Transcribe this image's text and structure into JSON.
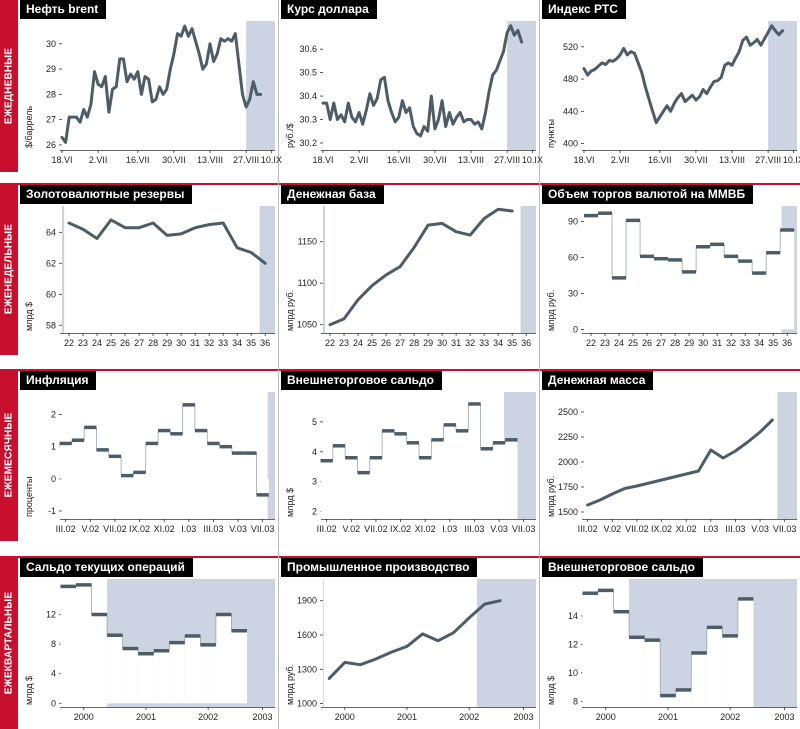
{
  "colors": {
    "accent": "#c8102e",
    "plot_bg": "#ccd3e2",
    "line": "#4d5d68",
    "title_bg": "#000000"
  },
  "rows": [
    {
      "label": "ЕЖЕДНЕВНЫЕ"
    },
    {
      "label": "ЕЖЕНЕДЕЛЬНЫЕ"
    },
    {
      "label": "ЕЖЕМЕСЯЧНЫЕ"
    },
    {
      "label": "ЕЖЕКВАРТАЛЬНЫЕ"
    }
  ],
  "chart_data": [
    {
      "id": "oil",
      "type": "line",
      "title": "Нефть brent",
      "ylabel": "$/баррель",
      "ylim": [
        25.8,
        30.9
      ],
      "yticks": [
        26,
        27,
        28,
        29,
        30
      ],
      "xlim": [
        0,
        59
      ],
      "xticks": [
        0,
        10,
        21,
        31,
        41,
        51,
        58
      ],
      "xticklabels": [
        "18.VI",
        "2.VII",
        "16.VII",
        "30.VII",
        "13.VIII",
        "27.VIII",
        "10.IX"
      ],
      "x": [
        0,
        1,
        2,
        3,
        4,
        5,
        6,
        7,
        8,
        9,
        10,
        11,
        12,
        13,
        14,
        15,
        16,
        17,
        18,
        19,
        20,
        21,
        22,
        23,
        24,
        25,
        26,
        27,
        28,
        29,
        30,
        31,
        32,
        33,
        34,
        35,
        36,
        37,
        38,
        39,
        40,
        41,
        42,
        43,
        44,
        45,
        46,
        47,
        48,
        49,
        50,
        51,
        52,
        53,
        54,
        55
      ],
      "values": [
        26.3,
        26.1,
        27.1,
        27.1,
        27.1,
        26.9,
        27.4,
        27.1,
        27.6,
        28.9,
        28.4,
        28.3,
        28.7,
        27.3,
        28.2,
        28.3,
        29.4,
        29.4,
        28.5,
        28.8,
        28.6,
        28.9,
        28.0,
        28.7,
        28.6,
        27.7,
        27.8,
        28.3,
        28.0,
        28.2,
        29.0,
        29.6,
        30.4,
        30.3,
        30.7,
        30.3,
        30.6,
        30.1,
        29.6,
        29.0,
        29.2,
        30.0,
        29.3,
        29.6,
        30.2,
        30.1,
        30.2,
        30.1,
        30.4,
        29.2,
        28.0,
        27.5,
        27.8,
        28.5,
        28.0,
        28.0
      ],
      "shade_from": 51
    },
    {
      "id": "usd",
      "type": "line",
      "title": "Курс доллара",
      "ylabel": "руб./$",
      "ylim": [
        30.17,
        30.72
      ],
      "yticks": [
        30.2,
        30.3,
        30.4,
        30.5,
        30.6
      ],
      "xlim": [
        0,
        59
      ],
      "xticks": [
        0,
        10,
        21,
        31,
        41,
        51,
        58
      ],
      "xticklabels": [
        "18.VI",
        "2.VII",
        "16.VII",
        "30.VII",
        "13.VIII",
        "27.VIII",
        "10.IX"
      ],
      "x": [
        0,
        1,
        2,
        3,
        4,
        5,
        6,
        7,
        8,
        9,
        10,
        11,
        12,
        13,
        14,
        15,
        16,
        17,
        18,
        19,
        20,
        21,
        22,
        23,
        24,
        25,
        26,
        27,
        28,
        29,
        30,
        31,
        32,
        33,
        34,
        35,
        36,
        37,
        38,
        39,
        40,
        41,
        42,
        43,
        44,
        45,
        46,
        47,
        48,
        49,
        50,
        51,
        52,
        53,
        54,
        55
      ],
      "values": [
        30.37,
        30.37,
        30.3,
        30.37,
        30.3,
        30.32,
        30.29,
        30.37,
        30.31,
        30.29,
        30.33,
        30.28,
        30.34,
        30.41,
        30.36,
        30.39,
        30.47,
        30.48,
        30.38,
        30.33,
        30.29,
        30.31,
        30.38,
        30.33,
        30.35,
        30.27,
        30.24,
        30.23,
        30.27,
        30.25,
        30.4,
        30.26,
        30.3,
        30.38,
        30.27,
        30.33,
        30.28,
        30.31,
        30.33,
        30.29,
        30.3,
        30.3,
        30.28,
        30.29,
        30.26,
        30.33,
        30.42,
        30.49,
        30.51,
        30.55,
        30.59,
        30.67,
        30.7,
        30.66,
        30.68,
        30.63
      ],
      "shade_from": 51
    },
    {
      "id": "rts",
      "type": "line",
      "title": "Индекс РТС",
      "ylabel": "пункты",
      "ylim": [
        392,
        552
      ],
      "yticks": [
        400,
        440,
        480,
        520
      ],
      "xlim": [
        0,
        59
      ],
      "xticks": [
        0,
        10,
        21,
        31,
        41,
        51,
        58
      ],
      "xticklabels": [
        "18.VI",
        "2.VII",
        "16.VII",
        "30.VII",
        "13.VIII",
        "27.VIII",
        "10.IX"
      ],
      "x": [
        0,
        1,
        2,
        3,
        4,
        5,
        6,
        7,
        8,
        9,
        10,
        11,
        12,
        13,
        14,
        15,
        16,
        17,
        18,
        19,
        20,
        21,
        22,
        23,
        24,
        25,
        26,
        27,
        28,
        29,
        30,
        31,
        32,
        33,
        34,
        35,
        36,
        37,
        38,
        39,
        40,
        41,
        42,
        43,
        44,
        45,
        46,
        47,
        48,
        49,
        50,
        51,
        52,
        53,
        54,
        55
      ],
      "values": [
        493,
        485,
        490,
        492,
        496,
        500,
        498,
        503,
        502,
        505,
        510,
        518,
        510,
        514,
        512,
        500,
        488,
        470,
        455,
        440,
        426,
        433,
        440,
        447,
        440,
        450,
        457,
        462,
        452,
        456,
        460,
        454,
        458,
        467,
        462,
        470,
        477,
        478,
        482,
        497,
        500,
        497,
        506,
        514,
        528,
        532,
        522,
        525,
        529,
        522,
        530,
        538,
        546,
        540,
        535,
        540
      ],
      "shade_from": 51
    },
    {
      "id": "reserves",
      "type": "line",
      "title": "Золотовалютные резервы",
      "ylabel": "млрд $",
      "ylim": [
        57.5,
        65.7
      ],
      "yticks": [
        58,
        60,
        62,
        64
      ],
      "xlim": [
        21.5,
        36.7
      ],
      "xticks": [
        22,
        23,
        24,
        25,
        26,
        27,
        28,
        29,
        30,
        31,
        32,
        33,
        34,
        35,
        36
      ],
      "xticklabels": [
        "22",
        "23",
        "24",
        "25",
        "26",
        "27",
        "28",
        "29",
        "30",
        "31",
        "32",
        "33",
        "34",
        "35",
        "36"
      ],
      "x": [
        22,
        23,
        24,
        25,
        26,
        27,
        28,
        29,
        30,
        31,
        32,
        33,
        34,
        35,
        36
      ],
      "values": [
        64.6,
        64.2,
        63.6,
        64.8,
        64.3,
        64.3,
        64.6,
        63.8,
        63.9,
        64.3,
        64.5,
        64.6,
        63.0,
        62.7,
        62.0
      ],
      "shade_from": 35.6
    },
    {
      "id": "money_base",
      "type": "line",
      "title": "Денежная база",
      "ylabel": "млрд руб.",
      "ylim": [
        1040,
        1193
      ],
      "yticks": [
        1050,
        1100,
        1150
      ],
      "xlim": [
        21.5,
        36.7
      ],
      "xticks": [
        22,
        23,
        24,
        25,
        26,
        27,
        28,
        29,
        30,
        31,
        32,
        33,
        34,
        35,
        36
      ],
      "xticklabels": [
        "22",
        "23",
        "24",
        "25",
        "26",
        "27",
        "28",
        "29",
        "30",
        "31",
        "32",
        "33",
        "34",
        "35",
        "36"
      ],
      "x": [
        22,
        23,
        24,
        25,
        26,
        27,
        28,
        29,
        30,
        31,
        32,
        33,
        34,
        35
      ],
      "values": [
        1050,
        1057,
        1080,
        1097,
        1110,
        1120,
        1143,
        1170,
        1172,
        1162,
        1158,
        1178,
        1189,
        1187
      ],
      "shade_from": 35.6
    },
    {
      "id": "micex",
      "type": "step",
      "title": "Объем торгов валютой на ММВБ",
      "ylabel": "млрд руб.",
      "ylim": [
        -3,
        103
      ],
      "yticks": [
        0,
        30,
        60,
        90
      ],
      "xlim": [
        21.5,
        36.7
      ],
      "xticks": [
        22,
        23,
        24,
        25,
        26,
        27,
        28,
        29,
        30,
        31,
        32,
        33,
        34,
        35,
        36
      ],
      "xticklabels": [
        "22",
        "23",
        "24",
        "25",
        "26",
        "27",
        "28",
        "29",
        "30",
        "31",
        "32",
        "33",
        "34",
        "35",
        "36"
      ],
      "x": [
        22,
        23,
        24,
        25,
        26,
        27,
        28,
        29,
        30,
        31,
        32,
        33,
        34,
        35,
        36
      ],
      "values": [
        95,
        97,
        43,
        91,
        61,
        59,
        58,
        48,
        69,
        71,
        61,
        57,
        47,
        64,
        83
      ],
      "shade_from": 35.6
    },
    {
      "id": "inflation",
      "type": "step",
      "title": "Инфляция",
      "ylabel": "проценты",
      "ylim": [
        -1.25,
        2.7
      ],
      "yticks": [
        -1,
        0,
        1,
        2
      ],
      "xlim": [
        -0.3,
        17
      ],
      "xticks": [
        0,
        2,
        4,
        6,
        8,
        10,
        12,
        14,
        16
      ],
      "xticklabels": [
        "III.02",
        "V.02",
        "VII.02",
        "IX.02",
        "XI.02",
        "I.03",
        "III.03",
        "V.03",
        "VII.03"
      ],
      "x": [
        0,
        1,
        2,
        3,
        4,
        5,
        6,
        7,
        8,
        9,
        10,
        11,
        12,
        13,
        14,
        15,
        16
      ],
      "values": [
        1.1,
        1.2,
        1.6,
        0.9,
        0.7,
        0.1,
        0.2,
        1.1,
        1.5,
        1.4,
        2.3,
        1.5,
        1.1,
        1.0,
        0.8,
        0.8,
        -0.5
      ],
      "shade_from": 16.4
    },
    {
      "id": "trade_m",
      "type": "step",
      "title": "Внешнеторговое сальдо",
      "ylabel": "млрд $",
      "ylim": [
        1.75,
        6.0
      ],
      "yticks": [
        2,
        3,
        4,
        5
      ],
      "xlim": [
        -0.3,
        17
      ],
      "xticks": [
        0,
        2,
        4,
        6,
        8,
        10,
        12,
        14,
        16
      ],
      "xticklabels": [
        "III.02",
        "V.02",
        "VII.02",
        "IX.02",
        "XI.02",
        "I.03",
        "III.03",
        "V.03",
        "VII.03"
      ],
      "x": [
        0,
        1,
        2,
        3,
        4,
        5,
        6,
        7,
        8,
        9,
        10,
        11,
        12,
        13,
        14,
        15
      ],
      "values": [
        3.7,
        4.2,
        3.8,
        3.3,
        3.8,
        4.7,
        4.6,
        4.3,
        3.8,
        4.4,
        4.9,
        4.7,
        5.6,
        4.1,
        4.3,
        4.4
      ],
      "shade_from": 14.4
    },
    {
      "id": "money_supply",
      "type": "line",
      "title": "Денежная масса",
      "ylabel": "млрд руб.",
      "ylim": [
        1430,
        2700
      ],
      "yticks": [
        1500,
        1750,
        2000,
        2250,
        2500
      ],
      "xlim": [
        -0.3,
        17
      ],
      "xticks": [
        0,
        2,
        4,
        6,
        8,
        10,
        12,
        14,
        16
      ],
      "xticklabels": [
        "III.02",
        "V.02",
        "VII.02",
        "IX.02",
        "XI.02",
        "I.03",
        "III.03",
        "V.03",
        "VII.03"
      ],
      "x": [
        0,
        1,
        2,
        3,
        4,
        5,
        6,
        7,
        8,
        9,
        10,
        11,
        12,
        13,
        14,
        15
      ],
      "values": [
        1570,
        1620,
        1680,
        1735,
        1760,
        1790,
        1820,
        1850,
        1880,
        1910,
        2120,
        2040,
        2110,
        2200,
        2300,
        2420
      ],
      "shade_from": 15.4
    },
    {
      "id": "current_account",
      "type": "step",
      "title": "Сальдо текущих операций",
      "ylabel": "млрд $",
      "ylim": [
        -0.5,
        16.8
      ],
      "yticks": [
        0,
        4,
        8,
        12
      ],
      "xlim": [
        -0.4,
        13.3
      ],
      "xticks": [
        1,
        5,
        9,
        12.5
      ],
      "xticklabels": [
        "2000",
        "2001",
        "2002",
        "2003"
      ],
      "x": [
        0,
        1,
        2,
        3,
        4,
        5,
        6,
        7,
        8,
        9,
        10,
        11,
        12
      ],
      "values": [
        15.8,
        16.0,
        12.0,
        9.2,
        7.4,
        6.7,
        7.1,
        8.2,
        9.1,
        7.9,
        12.0,
        9.8,
        null
      ],
      "shade_from": 2.5
    },
    {
      "id": "industry",
      "type": "line",
      "title": "Промышленное производство",
      "ylabel": "млрд руб.",
      "ylim": [
        970,
        2090
      ],
      "yticks": [
        1000,
        1300,
        1600,
        1900
      ],
      "xlim": [
        -0.4,
        13.3
      ],
      "xticks": [
        1,
        5,
        9,
        12.5
      ],
      "xticklabels": [
        "2000",
        "2001",
        "2002",
        "2003"
      ],
      "x": [
        0,
        1,
        2,
        3,
        4,
        5,
        6,
        7,
        8,
        9,
        10,
        11
      ],
      "values": [
        1220,
        1360,
        1340,
        1390,
        1450,
        1500,
        1610,
        1550,
        1620,
        1750,
        1870,
        1900
      ],
      "shade_from": 9.5
    },
    {
      "id": "trade_q",
      "type": "step",
      "title": "Внешнеторговое сальдо",
      "ylabel": "млрд $",
      "ylim": [
        7.6,
        16.6
      ],
      "yticks": [
        8,
        10,
        12,
        14
      ],
      "xlim": [
        -0.4,
        13.3
      ],
      "xticks": [
        1,
        5,
        9,
        12.5
      ],
      "xticklabels": [
        "2000",
        "2001",
        "2002",
        "2003"
      ],
      "x": [
        0,
        1,
        2,
        3,
        4,
        5,
        6,
        7,
        8,
        9,
        10,
        11
      ],
      "values": [
        15.6,
        15.8,
        14.3,
        12.5,
        12.3,
        8.4,
        8.8,
        11.4,
        13.2,
        12.6,
        15.2,
        null
      ],
      "shade_from": 2.5
    }
  ]
}
